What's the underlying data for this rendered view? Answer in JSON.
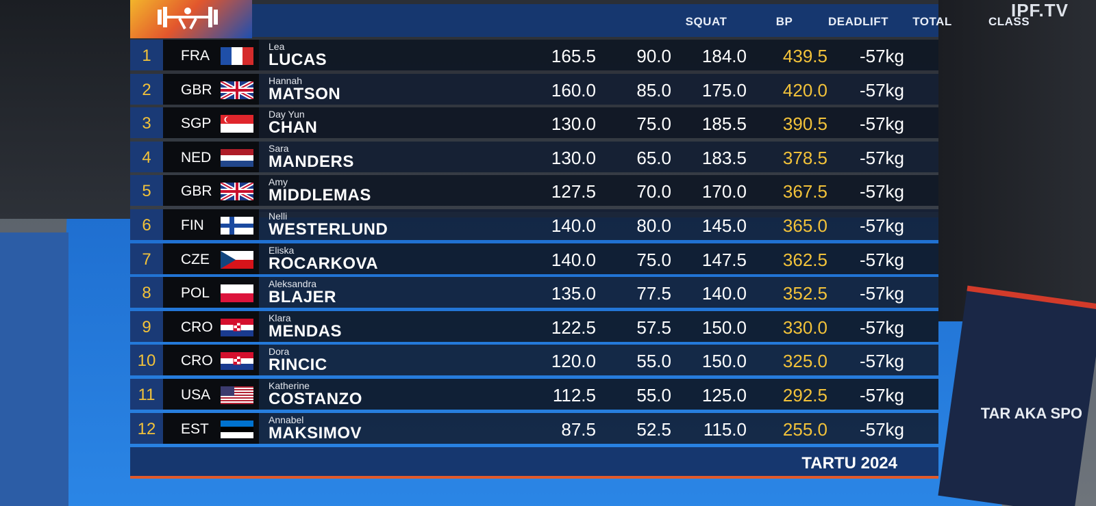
{
  "broadcast": {
    "watermark": "IPF.TV"
  },
  "colors": {
    "header": "#16376f",
    "accent_gold": "#f2c23a",
    "rank_bg": "#1a3a76",
    "row_bg": "#121e32"
  },
  "header": {
    "logo_icon": "lifter-icon",
    "columns": {
      "squat": "SQUAT",
      "bp": "BP",
      "deadlift": "DEADLIFT",
      "total": "TOTAL",
      "class": "CLASS"
    }
  },
  "rows": [
    {
      "rank": "1",
      "code": "FRA",
      "flag": "fra",
      "first": "Lea",
      "last": "LUCAS",
      "squat": "165.5",
      "bp": "90.0",
      "deadlift": "184.0",
      "total": "439.5",
      "class": "-57kg"
    },
    {
      "rank": "2",
      "code": "GBR",
      "flag": "gbr",
      "first": "Hannah",
      "last": "MATSON",
      "squat": "160.0",
      "bp": "85.0",
      "deadlift": "175.0",
      "total": "420.0",
      "class": "-57kg"
    },
    {
      "rank": "3",
      "code": "SGP",
      "flag": "sgp",
      "first": "Day Yun",
      "last": "CHAN",
      "squat": "130.0",
      "bp": "75.0",
      "deadlift": "185.5",
      "total": "390.5",
      "class": "-57kg"
    },
    {
      "rank": "4",
      "code": "NED",
      "flag": "ned",
      "first": "Sara",
      "last": "MANDERS",
      "squat": "130.0",
      "bp": "65.0",
      "deadlift": "183.5",
      "total": "378.5",
      "class": "-57kg"
    },
    {
      "rank": "5",
      "code": "GBR",
      "flag": "gbr",
      "first": "Amy",
      "last": "MIDDLEMAS",
      "squat": "127.5",
      "bp": "70.0",
      "deadlift": "170.0",
      "total": "367.5",
      "class": "-57kg"
    },
    {
      "rank": "6",
      "code": "FIN",
      "flag": "fin",
      "first": "Nelli",
      "last": "WESTERLUND",
      "squat": "140.0",
      "bp": "80.0",
      "deadlift": "145.0",
      "total": "365.0",
      "class": "-57kg"
    },
    {
      "rank": "7",
      "code": "CZE",
      "flag": "cze",
      "first": "Eliska",
      "last": "ROCARKOVA",
      "squat": "140.0",
      "bp": "75.0",
      "deadlift": "147.5",
      "total": "362.5",
      "class": "-57kg"
    },
    {
      "rank": "8",
      "code": "POL",
      "flag": "pol",
      "first": "Aleksandra",
      "last": "BLAJER",
      "squat": "135.0",
      "bp": "77.5",
      "deadlift": "140.0",
      "total": "352.5",
      "class": "-57kg"
    },
    {
      "rank": "9",
      "code": "CRO",
      "flag": "cro",
      "first": "Klara",
      "last": "MENDAS",
      "squat": "122.5",
      "bp": "57.5",
      "deadlift": "150.0",
      "total": "330.0",
      "class": "-57kg"
    },
    {
      "rank": "10",
      "code": "CRO",
      "flag": "cro",
      "first": "Dora",
      "last": "RINCIC",
      "squat": "120.0",
      "bp": "55.0",
      "deadlift": "150.0",
      "total": "325.0",
      "class": "-57kg"
    },
    {
      "rank": "11",
      "code": "USA",
      "flag": "usa",
      "first": "Katherine",
      "last": "COSTANZO",
      "squat": "112.5",
      "bp": "55.0",
      "deadlift": "125.0",
      "total": "292.5",
      "class": "-57kg"
    },
    {
      "rank": "12",
      "code": "EST",
      "flag": "est",
      "first": "Annabel",
      "last": "MAKSIMOV",
      "squat": "87.5",
      "bp": "52.5",
      "deadlift": "115.0",
      "total": "255.0",
      "class": "-57kg"
    }
  ],
  "footer": {
    "label": "TARTU 2024"
  },
  "background": {
    "banner_text": "TAR AKA SPO"
  }
}
